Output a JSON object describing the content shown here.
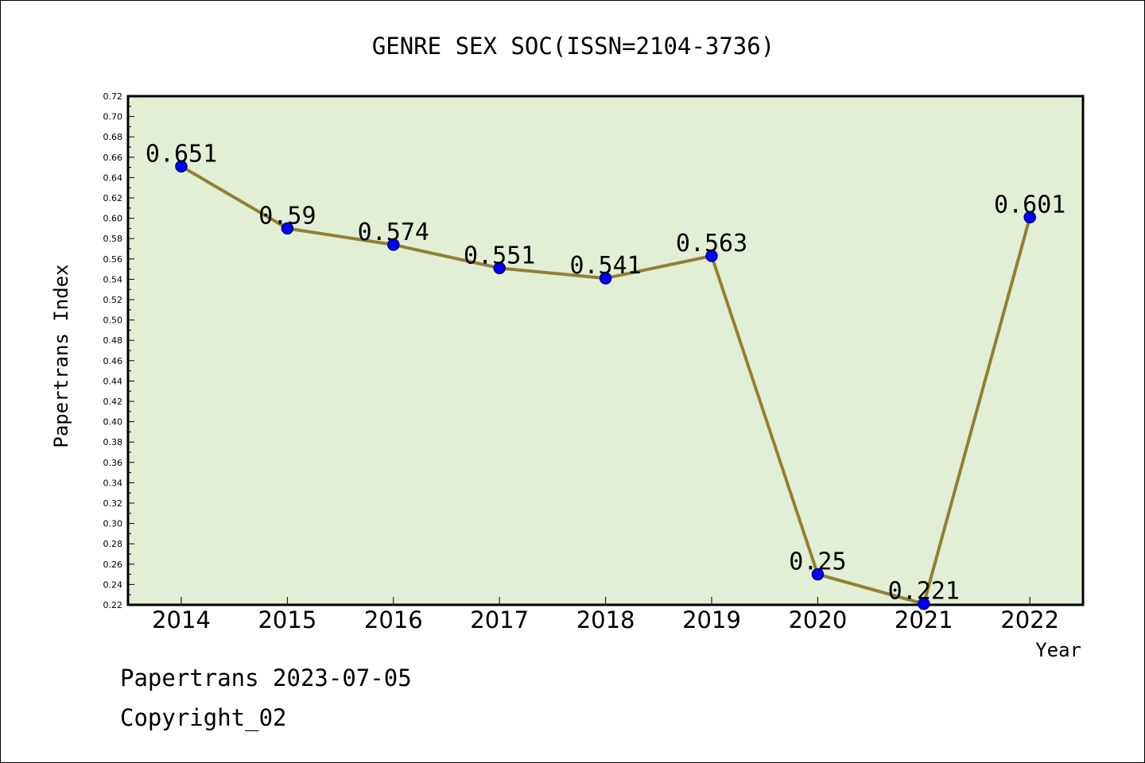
{
  "chart_data": {
    "type": "line",
    "title": "GENRE SEX SOC(ISSN=2104-3736)",
    "xlabel": "Year",
    "ylabel": "Papertrans Index",
    "categories": [
      "2014",
      "2015",
      "2016",
      "2017",
      "2018",
      "2019",
      "2020",
      "2021",
      "2022"
    ],
    "series": [
      {
        "values": [
          0.651,
          0.59,
          0.574,
          0.551,
          0.541,
          0.563,
          0.25,
          0.221,
          0.601
        ]
      }
    ],
    "data_labels": [
      "0.651",
      "0.59",
      "0.574",
      "0.551",
      "0.541",
      "0.563",
      "0.25",
      "0.221",
      "0.601"
    ],
    "ylim": [
      0.22,
      0.72
    ],
    "yticks": [
      "0.22",
      "0.24",
      "0.26",
      "0.28",
      "0.30",
      "0.32",
      "0.34",
      "0.36",
      "0.38",
      "0.40",
      "0.42",
      "0.44",
      "0.46",
      "0.48",
      "0.50",
      "0.52",
      "0.54",
      "0.56",
      "0.58",
      "0.60",
      "0.62",
      "0.64",
      "0.66",
      "0.68",
      "0.70",
      "0.72"
    ],
    "grid": false,
    "colors": {
      "plot_background": "#e2efd4",
      "line": "#8f8137",
      "marker_fill": "#0000ff",
      "marker_edge": "#000080"
    }
  },
  "footer": {
    "line1": "Papertrans 2023-07-05",
    "line2": "Copyright_02"
  }
}
